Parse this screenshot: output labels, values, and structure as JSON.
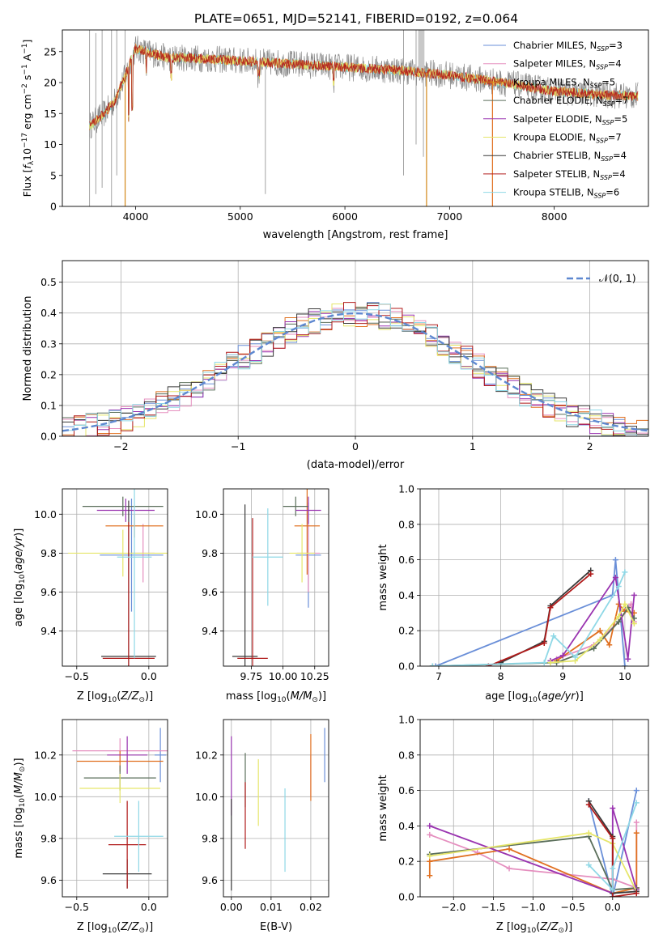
{
  "figure_title": "PLATE=0651, MJD=52141, FIBERID=0192, z=0.064",
  "colors": {
    "c1": "#6a8fd8",
    "c2": "#e58fbf",
    "c3": "#d4891a",
    "c4": "#5a6e5a",
    "c5": "#9a34b0",
    "c6": "#e6e66a",
    "c7": "#3a3a3a",
    "c8": "#b01a1a",
    "c9": "#8fd8e6",
    "c10": "#e07020",
    "c11": "#6fd8d8",
    "c12": "#c0c0c0"
  },
  "chart_data": [
    {
      "id": "spectrum",
      "type": "line",
      "xlabel": "wavelength [Angstrom, rest frame]",
      "ylabel": "Flux [f_λ 10^-17 erg cm^-2 s^-1 A^-1]",
      "xlim": [
        3300,
        8900
      ],
      "ylim": [
        0,
        28.5
      ],
      "xticks": [
        4000,
        5000,
        6000,
        7000,
        8000
      ],
      "yticks": [
        0,
        5,
        10,
        15,
        20,
        25
      ],
      "legend_position": "top-right",
      "legend": [
        {
          "label": "Chabrier MILES, N",
          "sub": "SSP",
          "val": "=3",
          "color": "#6a8fd8"
        },
        {
          "label": "Salpeter MILES, N",
          "sub": "SSP",
          "val": "=4",
          "color": "#e58fbf"
        },
        {
          "label": "Kroupa MILES, N",
          "sub": "SSP",
          "val": "=5",
          "color": "#d4891a"
        },
        {
          "label": "Chabrier ELODIE, N",
          "sub": "SSP",
          "val": "=7",
          "color": "#5a6e5a"
        },
        {
          "label": "Salpeter ELODIE, N",
          "sub": "SSP",
          "val": "=5",
          "color": "#9a34b0"
        },
        {
          "label": "Kroupa ELODIE, N",
          "sub": "SSP",
          "val": "=7",
          "color": "#e6e66a"
        },
        {
          "label": "Chabrier STELIB, N",
          "sub": "SSP",
          "val": "=4",
          "color": "#3a3a3a"
        },
        {
          "label": "Salpeter STELIB, N",
          "sub": "SSP",
          "val": "=4",
          "color": "#b01a1a"
        },
        {
          "label": "Kroupa STELIB, N",
          "sub": "SSP",
          "val": "=6",
          "color": "#8fd8e6"
        }
      ],
      "continuum_x": [
        3560,
        3700,
        3800,
        3900,
        4000,
        4100,
        4300,
        4500,
        5000,
        5500,
        6000,
        6500,
        7000,
        7500,
        8000,
        8500,
        8800
      ],
      "continuum_y": [
        13,
        15,
        17,
        21,
        25.5,
        25,
        24,
        24,
        23.5,
        23,
        22.5,
        22,
        21.2,
        20,
        18.6,
        18,
        17.8
      ]
    },
    {
      "id": "residuals",
      "type": "histogram",
      "xlabel": "(data-model)/error",
      "ylabel": "Normed distribution",
      "xlim": [
        -2.5,
        2.5
      ],
      "ylim": [
        0,
        0.57
      ],
      "xticks": [
        -2,
        -1,
        0,
        1,
        2
      ],
      "yticks": [
        0.0,
        0.1,
        0.2,
        0.3,
        0.4,
        0.5
      ],
      "legend_label": "𝒩(0, 1)",
      "legend_position": "top-right"
    },
    {
      "id": "age_vs_Z",
      "type": "errorbar",
      "xlabel": "Z [log10(Z/Z⊙)]",
      "ylabel": "age [log10(age/yr)]",
      "xlim": [
        -0.6,
        0.13
      ],
      "ylim": [
        9.22,
        10.13
      ],
      "xticks": [
        -0.5,
        0.0
      ],
      "yticks": [
        9.4,
        9.6,
        9.8,
        10.0
      ],
      "points": [
        {
          "x": -0.12,
          "y": 9.79,
          "xe": 0.22,
          "ye": 0.29,
          "color": "#6a8fd8"
        },
        {
          "x": -0.04,
          "y": 9.8,
          "xe": 0.08,
          "ye": 0.15,
          "color": "#e58fbf"
        },
        {
          "x": -0.1,
          "y": 9.94,
          "xe": 0.2,
          "ye": 0.06,
          "color": "#e07020"
        },
        {
          "x": -0.18,
          "y": 10.04,
          "xe": 0.28,
          "ye": 0.05,
          "color": "#5a6e5a"
        },
        {
          "x": -0.16,
          "y": 10.02,
          "xe": 0.2,
          "ye": 0.06,
          "color": "#9a34b0"
        },
        {
          "x": -0.18,
          "y": 9.8,
          "xe": 0.38,
          "ye": 0.12,
          "color": "#e6e66a"
        },
        {
          "x": -0.14,
          "y": 9.27,
          "xe": 0.19,
          "ye": 0.8,
          "color": "#3a3a3a"
        },
        {
          "x": -0.14,
          "y": 9.26,
          "xe": 0.18,
          "ye": 0.7,
          "color": "#b01a1a"
        },
        {
          "x": -0.1,
          "y": 9.78,
          "xe": 0.12,
          "ye": 0.52,
          "color": "#8fd8e6"
        }
      ]
    },
    {
      "id": "age_vs_mass",
      "type": "errorbar",
      "xlabel": "mass [log10(M/M⊙)]",
      "ylabel": "",
      "xlim": [
        9.53,
        10.36
      ],
      "ylim": [
        9.22,
        10.13
      ],
      "xticks": [
        9.75,
        10.0,
        10.25
      ],
      "xticklabels": [
        "9.75",
        "10.00",
        "10.25"
      ],
      "yticks": [
        9.4,
        9.6,
        9.8,
        10.0
      ],
      "points": [
        {
          "x": 10.2,
          "y": 9.79,
          "xe": 0.1,
          "ye": 0.27,
          "color": "#6a8fd8"
        },
        {
          "x": 10.2,
          "y": 9.8,
          "xe": 0.09,
          "ye": 0.2,
          "color": "#e58fbf"
        },
        {
          "x": 10.19,
          "y": 9.94,
          "xe": 0.1,
          "ye": 0.25,
          "color": "#e07020"
        },
        {
          "x": 10.1,
          "y": 10.04,
          "xe": 0.1,
          "ye": 0.05,
          "color": "#5a6e5a"
        },
        {
          "x": 10.2,
          "y": 10.02,
          "xe": 0.1,
          "ye": 0.07,
          "color": "#9a34b0"
        },
        {
          "x": 10.15,
          "y": 9.8,
          "xe": 0.1,
          "ye": 0.15,
          "color": "#e6e66a"
        },
        {
          "x": 9.7,
          "y": 9.27,
          "xe": 0.1,
          "ye": 0.78,
          "color": "#3a3a3a"
        },
        {
          "x": 9.76,
          "y": 9.26,
          "xe": 0.12,
          "ye": 0.72,
          "color": "#b01a1a"
        },
        {
          "x": 9.88,
          "y": 9.78,
          "xe": 0.12,
          "ye": 0.25,
          "color": "#8fd8e6"
        }
      ]
    },
    {
      "id": "mw_vs_age",
      "type": "line",
      "xlabel": "age [log10(age/yr)]",
      "ylabel": "mass weight",
      "xlim": [
        6.7,
        10.38
      ],
      "ylim": [
        0,
        1.0
      ],
      "xticks": [
        7,
        8,
        9,
        10
      ],
      "yticks": [
        0.0,
        0.2,
        0.4,
        0.6,
        0.8,
        1.0
      ],
      "series": [
        {
          "color": "#6a8fd8",
          "x": [
            6.95,
            9.8,
            9.85,
            10.0
          ],
          "y": [
            0.0,
            0.4,
            0.6,
            0.0
          ]
        },
        {
          "color": "#e58fbf",
          "x": [
            8.9,
            9.5,
            9.9,
            10.1,
            10.15
          ],
          "y": [
            0.04,
            0.12,
            0.25,
            0.35,
            0.25
          ]
        },
        {
          "color": "#e07020",
          "x": [
            8.9,
            9.6,
            9.75,
            9.9,
            10.0,
            10.15
          ],
          "y": [
            0.03,
            0.2,
            0.12,
            0.35,
            0.31,
            0.3
          ]
        },
        {
          "color": "#5a6e5a",
          "x": [
            6.9,
            8.9,
            9.5,
            9.9,
            10.05,
            10.15
          ],
          "y": [
            0.0,
            0.02,
            0.1,
            0.25,
            0.33,
            0.27
          ]
        },
        {
          "color": "#9a34b0",
          "x": [
            8.8,
            9.0,
            9.85,
            10.05,
            10.15
          ],
          "y": [
            0.03,
            0.06,
            0.5,
            0.04,
            0.4
          ]
        },
        {
          "color": "#e6e66a",
          "x": [
            8.8,
            9.2,
            9.6,
            9.9,
            10.0,
            10.15
          ],
          "y": [
            0.02,
            0.03,
            0.15,
            0.28,
            0.35,
            0.24
          ]
        },
        {
          "color": "#3a3a3a",
          "x": [
            8.0,
            8.7,
            8.8,
            9.45
          ],
          "y": [
            0.02,
            0.14,
            0.34,
            0.54
          ]
        },
        {
          "color": "#b01a1a",
          "x": [
            7.8,
            8.7,
            8.8,
            9.45
          ],
          "y": [
            0.0,
            0.13,
            0.33,
            0.52
          ]
        },
        {
          "color": "#8fd8e6",
          "x": [
            6.9,
            8.7,
            8.85,
            9.2,
            9.9,
            10.0
          ],
          "y": [
            0.0,
            0.02,
            0.17,
            0.05,
            0.45,
            0.53
          ]
        }
      ]
    },
    {
      "id": "mass_vs_Z",
      "type": "errorbar",
      "xlabel": "Z [log10(Z/Z⊙)]",
      "ylabel": "mass [log10(M/M⊙)]",
      "xlim": [
        -0.6,
        0.13
      ],
      "ylim": [
        9.52,
        10.37
      ],
      "xticks": [
        -0.5,
        0.0
      ],
      "yticks": [
        9.6,
        9.8,
        10.0,
        10.2
      ],
      "points": [
        {
          "x": 0.08,
          "y": 10.2,
          "xe": 0.04,
          "ye": 0.13,
          "color": "#6a8fd8"
        },
        {
          "x": -0.2,
          "y": 10.22,
          "xe": 0.33,
          "ye": 0.06,
          "color": "#e58fbf"
        },
        {
          "x": -0.2,
          "y": 10.17,
          "xe": 0.3,
          "ye": 0.05,
          "color": "#e07020"
        },
        {
          "x": -0.2,
          "y": 10.09,
          "xe": 0.25,
          "ye": 0.06,
          "color": "#5a6e5a"
        },
        {
          "x": -0.15,
          "y": 10.2,
          "xe": 0.14,
          "ye": 0.09,
          "color": "#9a34b0"
        },
        {
          "x": -0.2,
          "y": 10.04,
          "xe": 0.28,
          "ye": 0.07,
          "color": "#e6e66a"
        },
        {
          "x": -0.15,
          "y": 9.63,
          "xe": 0.17,
          "ye": 0.07,
          "color": "#3a3a3a"
        },
        {
          "x": -0.15,
          "y": 9.77,
          "xe": 0.13,
          "ye": 0.21,
          "color": "#b01a1a"
        },
        {
          "x": -0.07,
          "y": 9.81,
          "xe": 0.17,
          "ye": 0.17,
          "color": "#8fd8e6"
        }
      ]
    },
    {
      "id": "mass_vs_ebv",
      "type": "errorbar",
      "xlabel": "E(B-V)",
      "ylabel": "",
      "xlim": [
        -0.002,
        0.0245
      ],
      "ylim": [
        9.52,
        10.37
      ],
      "xticks": [
        0.0,
        0.01,
        0.02
      ],
      "xticklabels": [
        "0.00",
        "0.01",
        "0.02"
      ],
      "yticks": [
        9.6,
        9.8,
        10.0,
        10.2
      ],
      "points": [
        {
          "x": 0.0235,
          "y": 10.2,
          "xe": 0,
          "ye": 0.13,
          "color": "#6a8fd8"
        },
        {
          "x": 0.02,
          "y": 10.1,
          "xe": 0,
          "ye": 0.1,
          "color": "#e58fbf"
        },
        {
          "x": 0.02,
          "y": 10.14,
          "xe": 0,
          "ye": 0.16,
          "color": "#e07020"
        },
        {
          "x": 0.0035,
          "y": 10.08,
          "xe": 0,
          "ye": 0.13,
          "color": "#5a6e5a"
        },
        {
          "x": 0.0,
          "y": 10.1,
          "xe": 0,
          "ye": 0.19,
          "color": "#9a34b0"
        },
        {
          "x": 0.0068,
          "y": 10.02,
          "xe": 0,
          "ye": 0.16,
          "color": "#e6e66a"
        },
        {
          "x": 0.0,
          "y": 9.77,
          "xe": 0,
          "ye": 0.22,
          "color": "#3a3a3a"
        },
        {
          "x": 0.0035,
          "y": 9.91,
          "xe": 0,
          "ye": 0.16,
          "color": "#b01a1a"
        },
        {
          "x": 0.0135,
          "y": 9.84,
          "xe": 0,
          "ye": 0.2,
          "color": "#8fd8e6"
        }
      ]
    },
    {
      "id": "mw_vs_Z",
      "type": "line",
      "xlabel": "Z [log10(Z/Z⊙)]",
      "ylabel": "mass weight",
      "xlim": [
        -2.42,
        0.45
      ],
      "ylim": [
        0,
        1.0
      ],
      "xticks": [
        -2.0,
        -1.5,
        -1.0,
        -0.5,
        0.0
      ],
      "xticklabels": [
        "−2.0",
        "−1.5",
        "−1.0",
        "−0.5",
        "0.0"
      ],
      "yticks": [
        0.0,
        0.2,
        0.4,
        0.6,
        0.8,
        1.0
      ],
      "series": [
        {
          "color": "#6a8fd8",
          "x": [
            -0.3,
            0.0,
            0.3
          ],
          "y": [
            0.54,
            0.0,
            0.6
          ]
        },
        {
          "color": "#e58fbf",
          "x": [
            -2.3,
            -1.7,
            -1.3,
            0.0,
            0.3,
            0.3
          ],
          "y": [
            0.35,
            0.25,
            0.16,
            0.1,
            0.05,
            0.42
          ]
        },
        {
          "color": "#e07020",
          "x": [
            -2.3,
            -2.3,
            -1.3,
            0.0,
            0.3,
            0.3
          ],
          "y": [
            0.12,
            0.2,
            0.27,
            0.02,
            0.05,
            0.36
          ]
        },
        {
          "color": "#5a6e5a",
          "x": [
            -2.3,
            -0.3,
            0.0,
            0.3
          ],
          "y": [
            0.24,
            0.34,
            0.04,
            0.05
          ]
        },
        {
          "color": "#9a34b0",
          "x": [
            -2.3,
            0.0,
            0.0,
            0.3,
            0.3
          ],
          "y": [
            0.4,
            0.02,
            0.5,
            0.04,
            0.04
          ]
        },
        {
          "color": "#e6e66a",
          "x": [
            -2.3,
            -0.3,
            0.0,
            0.3
          ],
          "y": [
            0.23,
            0.36,
            0.3,
            0.03
          ]
        },
        {
          "color": "#3a3a3a",
          "x": [
            -0.3,
            0.0,
            0.0,
            0.3
          ],
          "y": [
            0.54,
            0.34,
            0.02,
            0.03
          ]
        },
        {
          "color": "#b01a1a",
          "x": [
            -0.3,
            0.0,
            0.0,
            0.3
          ],
          "y": [
            0.52,
            0.33,
            0.0,
            0.02
          ]
        },
        {
          "color": "#8fd8e6",
          "x": [
            -0.3,
            0.0,
            0.0,
            0.3
          ],
          "y": [
            0.18,
            0.04,
            0.16,
            0.53
          ]
        }
      ]
    }
  ]
}
